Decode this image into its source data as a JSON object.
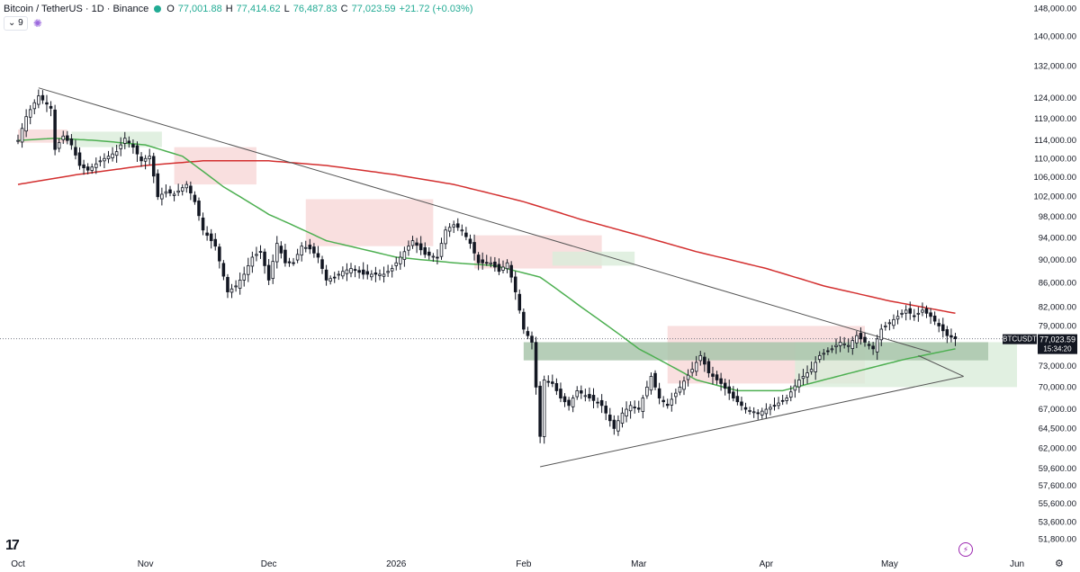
{
  "header": {
    "title": "Bitcoin / TetherUS · 1D · Binance",
    "open_label": "O",
    "open": "77,001.88",
    "high_label": "H",
    "high": "77,414.62",
    "low_label": "L",
    "low": "76,487.83",
    "close_label": "C",
    "close": "77,023.59",
    "change": "+21.72 (+0.03%)",
    "indicator_chip": "⌄ 9"
  },
  "price_tag": {
    "symbol": "BTCUSDT",
    "price": "77,023.59",
    "countdown": "15:34:20"
  },
  "colors": {
    "ma_long": "#d32f2f",
    "ma_short": "#4caf50",
    "cloud_bear": "#f8d7d7",
    "cloud_bull": "#d9ecd9",
    "zone": "#a9c6ac",
    "up": "#131722",
    "down": "#131722",
    "trendline": "#555555"
  },
  "chart_data": {
    "type": "candlestick",
    "symbol": "BTCUSDT",
    "timeframe": "1D",
    "exchange": "Binance",
    "y_scale": "log",
    "ylim": [
      50500,
      150500
    ],
    "y_ticks": [
      148000,
      140000,
      132000,
      124000,
      119000,
      114000,
      110000,
      106000,
      102000,
      98000,
      94000,
      90000,
      86000,
      82000,
      79000,
      73000,
      70000,
      67000,
      64500,
      62000,
      59600,
      57600,
      55600,
      53600,
      51800
    ],
    "y_tick_labels": [
      "148,000.00",
      "140,000.00",
      "132,000.00",
      "124,000.00",
      "119,000.00",
      "114,000.00",
      "110,000.00",
      "106,000.00",
      "102,000.00",
      "98,000.00",
      "94,000.00",
      "90,000.00",
      "86,000.00",
      "82,000.00",
      "79,000.00",
      "73,000.00",
      "70,000.00",
      "67,000.00",
      "64,500.00",
      "62,000.00",
      "59,600.00",
      "57,600.00",
      "55,600.00",
      "53,600.00",
      "51,800.00"
    ],
    "x_range": [
      "2025-10-01",
      "2026-06-01"
    ],
    "x_ticks": [
      {
        "date": "2025-10-01",
        "label": "Oct"
      },
      {
        "date": "2025-11-01",
        "label": "Nov"
      },
      {
        "date": "2025-12-01",
        "label": "Dec"
      },
      {
        "date": "2026-01-01",
        "label": "2026"
      },
      {
        "date": "2026-02-01",
        "label": "Feb"
      },
      {
        "date": "2026-03-01",
        "label": "Mar"
      },
      {
        "date": "2026-04-01",
        "label": "Apr"
      },
      {
        "date": "2026-05-01",
        "label": "May"
      },
      {
        "date": "2026-06-01",
        "label": "Jun"
      }
    ],
    "close_anchors": [
      [
        "2025-10-01",
        114000
      ],
      [
        "2025-10-03",
        119500
      ],
      [
        "2025-10-06",
        124500
      ],
      [
        "2025-10-08",
        122500
      ],
      [
        "2025-10-09",
        121500
      ],
      [
        "2025-10-10",
        112000
      ],
      [
        "2025-10-12",
        115000
      ],
      [
        "2025-10-14",
        113000
      ],
      [
        "2025-10-16",
        108500
      ],
      [
        "2025-10-18",
        107500
      ],
      [
        "2025-10-21",
        109500
      ],
      [
        "2025-10-23",
        110500
      ],
      [
        "2025-10-25",
        111500
      ],
      [
        "2025-10-27",
        114500
      ],
      [
        "2025-10-29",
        112500
      ],
      [
        "2025-10-31",
        109500
      ],
      [
        "2025-11-02",
        110500
      ],
      [
        "2025-11-04",
        102000
      ],
      [
        "2025-11-06",
        103000
      ],
      [
        "2025-11-08",
        102500
      ],
      [
        "2025-11-11",
        104500
      ],
      [
        "2025-11-13",
        101000
      ],
      [
        "2025-11-15",
        95500
      ],
      [
        "2025-11-18",
        92500
      ],
      [
        "2025-11-21",
        84500
      ],
      [
        "2025-11-23",
        85500
      ],
      [
        "2025-11-25",
        87500
      ],
      [
        "2025-11-27",
        90500
      ],
      [
        "2025-11-29",
        91500
      ],
      [
        "2025-12-01",
        86500
      ],
      [
        "2025-12-03",
        93000
      ],
      [
        "2025-12-05",
        89500
      ],
      [
        "2025-12-07",
        89500
      ],
      [
        "2025-12-09",
        92500
      ],
      [
        "2025-12-11",
        92000
      ],
      [
        "2025-12-13",
        90500
      ],
      [
        "2025-12-15",
        86500
      ],
      [
        "2025-12-17",
        87000
      ],
      [
        "2025-12-19",
        88000
      ],
      [
        "2025-12-21",
        88500
      ],
      [
        "2025-12-24",
        87500
      ],
      [
        "2025-12-27",
        87500
      ],
      [
        "2025-12-29",
        87500
      ],
      [
        "2025-12-31",
        88500
      ],
      [
        "2026-01-02",
        90500
      ],
      [
        "2026-01-05",
        93500
      ],
      [
        "2026-01-08",
        91000
      ],
      [
        "2026-01-11",
        90500
      ],
      [
        "2026-01-13",
        95500
      ],
      [
        "2026-01-15",
        96500
      ],
      [
        "2026-01-17",
        95500
      ],
      [
        "2026-01-19",
        93000
      ],
      [
        "2026-01-21",
        89500
      ],
      [
        "2026-01-24",
        89500
      ],
      [
        "2026-01-26",
        88000
      ],
      [
        "2026-01-28",
        89500
      ],
      [
        "2026-01-30",
        84500
      ],
      [
        "2026-02-01",
        78500
      ],
      [
        "2026-02-03",
        76500
      ],
      [
        "2026-02-05",
        63500
      ],
      [
        "2026-02-06",
        71000
      ],
      [
        "2026-02-08",
        70500
      ],
      [
        "2026-02-10",
        68500
      ],
      [
        "2026-02-12",
        67500
      ],
      [
        "2026-02-14",
        69500
      ],
      [
        "2026-02-17",
        68500
      ],
      [
        "2026-02-20",
        67500
      ],
      [
        "2026-02-23",
        64500
      ],
      [
        "2026-02-25",
        66500
      ],
      [
        "2026-02-27",
        67500
      ],
      [
        "2026-03-01",
        67000
      ],
      [
        "2026-03-04",
        71500
      ],
      [
        "2026-03-06",
        68500
      ],
      [
        "2026-03-08",
        67500
      ],
      [
        "2026-03-11",
        70000
      ],
      [
        "2026-03-14",
        72500
      ],
      [
        "2026-03-16",
        74500
      ],
      [
        "2026-03-18",
        72000
      ],
      [
        "2026-03-21",
        70500
      ],
      [
        "2026-03-24",
        68500
      ],
      [
        "2026-03-27",
        67000
      ],
      [
        "2026-03-30",
        66500
      ],
      [
        "2026-04-01",
        67000
      ],
      [
        "2026-04-03",
        67500
      ],
      [
        "2026-04-06",
        68500
      ],
      [
        "2026-04-09",
        71000
      ],
      [
        "2026-04-12",
        72500
      ],
      [
        "2026-04-14",
        74500
      ],
      [
        "2026-04-17",
        75500
      ],
      [
        "2026-04-19",
        76500
      ],
      [
        "2026-04-21",
        76000
      ],
      [
        "2026-04-23",
        77500
      ],
      [
        "2026-04-25",
        76500
      ],
      [
        "2026-04-27",
        75500
      ],
      [
        "2026-04-29",
        78500
      ],
      [
        "2026-05-01",
        79500
      ],
      [
        "2026-05-03",
        80500
      ],
      [
        "2026-05-05",
        81500
      ],
      [
        "2026-05-07",
        80500
      ],
      [
        "2026-05-09",
        81500
      ],
      [
        "2026-05-11",
        80500
      ],
      [
        "2026-05-13",
        79000
      ],
      [
        "2026-05-15",
        77500
      ],
      [
        "2026-05-17",
        77023.59
      ]
    ],
    "ma_long_anchors": [
      [
        "2025-10-01",
        104500
      ],
      [
        "2025-10-15",
        106500
      ],
      [
        "2025-11-01",
        108500
      ],
      [
        "2025-11-15",
        109500
      ],
      [
        "2025-12-01",
        109500
      ],
      [
        "2025-12-15",
        108500
      ],
      [
        "2026-01-01",
        106500
      ],
      [
        "2026-01-15",
        104500
      ],
      [
        "2026-02-01",
        101000
      ],
      [
        "2026-02-15",
        97500
      ],
      [
        "2026-03-01",
        94500
      ],
      [
        "2026-03-15",
        91500
      ],
      [
        "2026-04-01",
        88500
      ],
      [
        "2026-04-15",
        85500
      ],
      [
        "2026-05-01",
        83000
      ],
      [
        "2026-05-17",
        81000
      ]
    ],
    "ma_short_anchors": [
      [
        "2025-10-01",
        114000
      ],
      [
        "2025-10-10",
        114500
      ],
      [
        "2025-10-20",
        114000
      ],
      [
        "2025-11-01",
        113000
      ],
      [
        "2025-11-10",
        110500
      ],
      [
        "2025-11-20",
        104000
      ],
      [
        "2025-12-01",
        98500
      ],
      [
        "2025-12-15",
        93500
      ],
      [
        "2026-01-01",
        90500
      ],
      [
        "2026-01-15",
        89500
      ],
      [
        "2026-01-25",
        89000
      ],
      [
        "2026-02-05",
        87000
      ],
      [
        "2026-02-15",
        82000
      ],
      [
        "2026-03-01",
        75500
      ],
      [
        "2026-03-15",
        71000
      ],
      [
        "2026-03-25",
        69500
      ],
      [
        "2026-04-05",
        69500
      ],
      [
        "2026-04-15",
        71000
      ],
      [
        "2026-04-25",
        72500
      ],
      [
        "2026-05-05",
        74000
      ],
      [
        "2026-05-17",
        75500
      ]
    ],
    "cloud_bear": [
      {
        "from": "2025-10-01",
        "to": "2025-10-13",
        "top": 116500,
        "bottom": 113500
      },
      {
        "from": "2025-11-08",
        "to": "2025-11-28",
        "top": 112500,
        "bottom": 104500
      },
      {
        "from": "2025-12-10",
        "to": "2026-01-10",
        "top": 101500,
        "bottom": 92500
      },
      {
        "from": "2026-01-20",
        "to": "2026-02-20",
        "top": 94500,
        "bottom": 88500
      },
      {
        "from": "2026-03-08",
        "to": "2026-04-25",
        "top": 79000,
        "bottom": 70500
      }
    ],
    "cloud_bull": [
      {
        "from": "2025-10-14",
        "to": "2025-11-05",
        "top": 116000,
        "bottom": 112500
      },
      {
        "from": "2026-02-08",
        "to": "2026-02-28",
        "top": 91500,
        "bottom": 89000
      },
      {
        "from": "2026-04-08",
        "to": "2026-06-01",
        "top": 76500,
        "bottom": 70000
      }
    ],
    "zone": {
      "from": "2026-02-01",
      "to": "2026-05-25",
      "top": 76500,
      "bottom": 73800
    },
    "trendlines": [
      {
        "from": [
          "2025-10-06",
          126500
        ],
        "to": [
          "2026-05-11",
          75000
        ]
      },
      {
        "from": [
          "2026-02-05",
          59800
        ],
        "to": [
          "2026-05-19",
          71500
        ]
      },
      {
        "from": [
          "2026-05-19",
          71500
        ],
        "to": [
          "2026-05-08",
          74500
        ]
      }
    ],
    "last_price": 77023.59
  }
}
